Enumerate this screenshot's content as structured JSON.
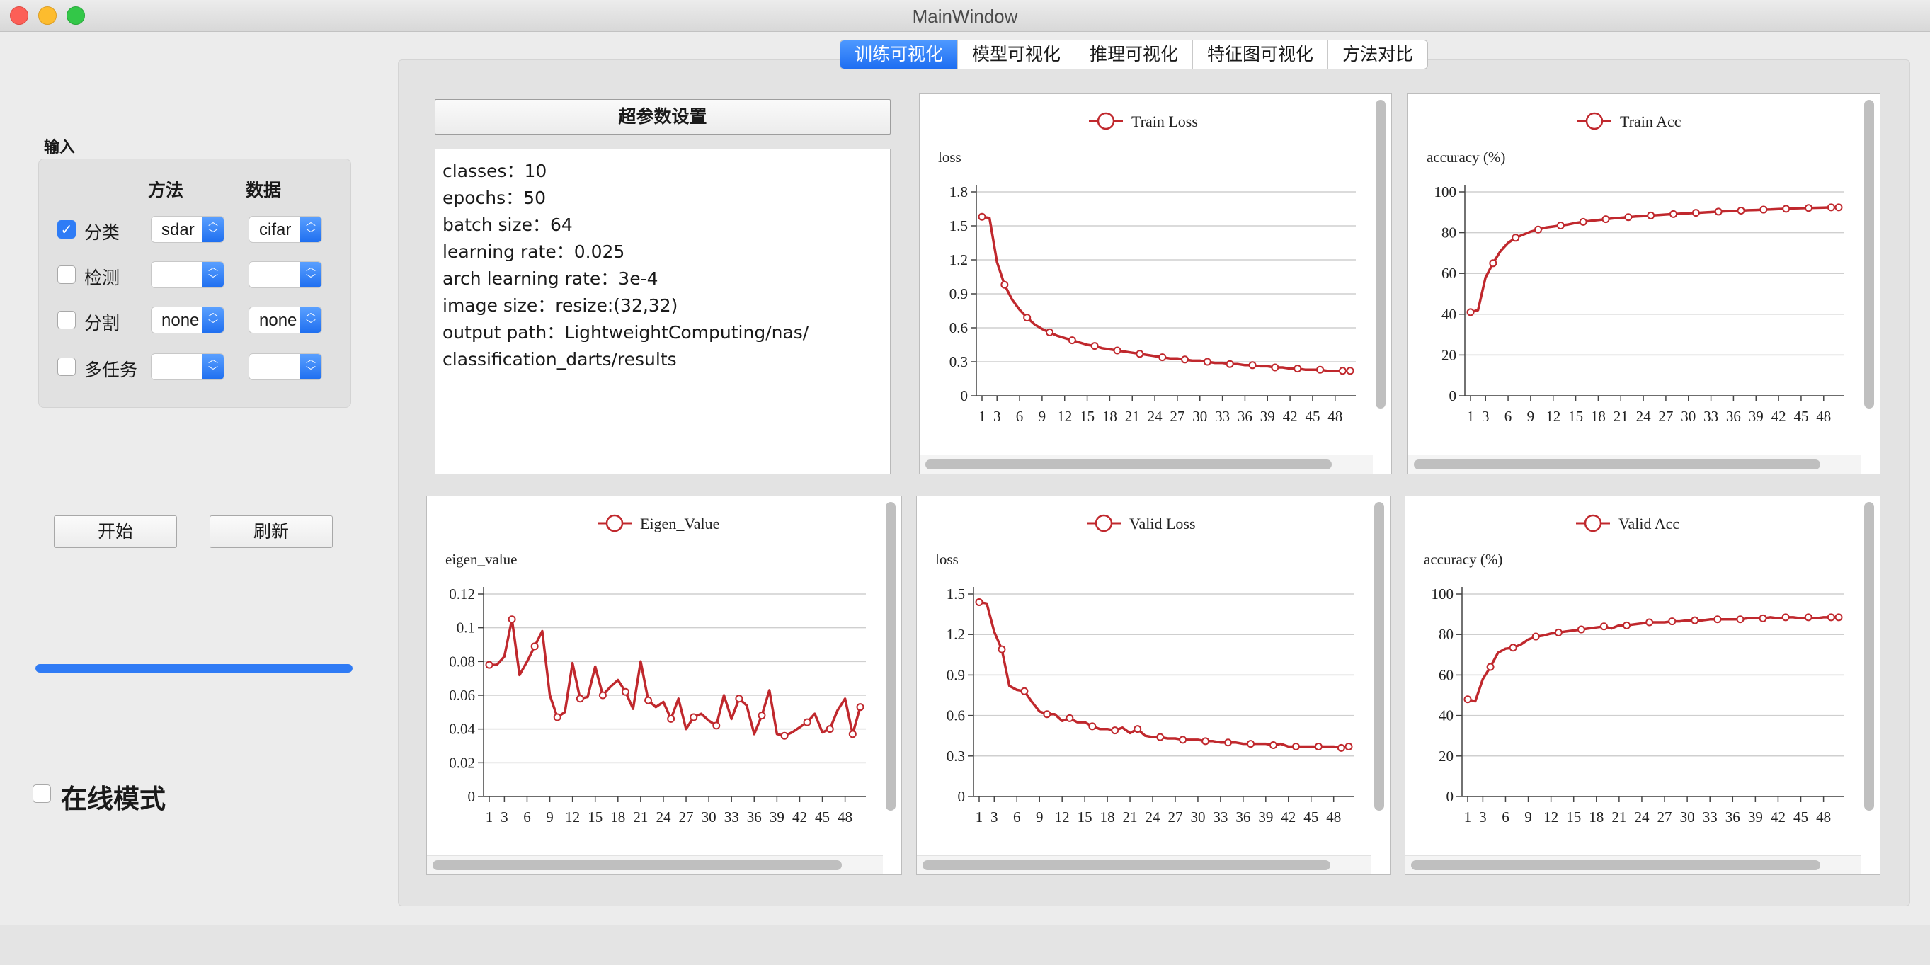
{
  "window": {
    "title": "MainWindow"
  },
  "left_panel": {
    "input_label": "输入",
    "col_method": "方法",
    "col_data": "数据",
    "rows": [
      {
        "label": "分类",
        "checked": true,
        "method": "sdar",
        "data": "cifar"
      },
      {
        "label": "检测",
        "checked": false,
        "method": "",
        "data": ""
      },
      {
        "label": "分割",
        "checked": false,
        "method": "none",
        "data": "none"
      },
      {
        "label": "多任务",
        "checked": false,
        "method": "",
        "data": ""
      }
    ],
    "start_button": "开始",
    "refresh_button": "刷新",
    "progress": 1.0,
    "online_mode": {
      "label": "在线模式",
      "checked": false
    }
  },
  "tabs": [
    "训练可视化",
    "模型可视化",
    "推理可视化",
    "特征图可视化",
    "方法对比"
  ],
  "active_tab": 0,
  "hyperparams": {
    "button_label": "超参数设置",
    "lines": [
      "classes：10",
      "epochs：50",
      "batch size：64",
      "learning rate：0.025",
      "arch learning rate：3e-4",
      "image size：resize:(32,32)",
      "output path：LightweightComputing/nas/",
      "classification_darts/results"
    ]
  },
  "colors": {
    "series": "#c0282d",
    "accent": "#2f7bf5"
  },
  "x_ticks": [
    "1",
    "3",
    "6",
    "9",
    "12",
    "15",
    "18",
    "21",
    "24",
    "27",
    "30",
    "33",
    "36",
    "39",
    "42",
    "45",
    "48"
  ],
  "chart_data": [
    {
      "id": "train-loss",
      "type": "line",
      "title": "",
      "ylabel": "loss",
      "series": [
        {
          "name": "Train Loss"
        }
      ],
      "y_ticks": [
        "0",
        "0.3",
        "0.6",
        "0.9",
        "1.2",
        "1.5",
        "1.8"
      ],
      "ylim": [
        0,
        1.8
      ],
      "x": [
        1,
        2,
        3,
        4,
        5,
        6,
        7,
        8,
        9,
        10,
        11,
        12,
        13,
        14,
        15,
        16,
        17,
        18,
        19,
        20,
        21,
        22,
        23,
        24,
        25,
        26,
        27,
        28,
        29,
        30,
        31,
        32,
        33,
        34,
        35,
        36,
        37,
        38,
        39,
        40,
        41,
        42,
        43,
        44,
        45,
        46,
        47,
        48,
        49,
        50
      ],
      "values": [
        1.58,
        1.57,
        1.18,
        0.98,
        0.85,
        0.76,
        0.69,
        0.63,
        0.59,
        0.56,
        0.53,
        0.51,
        0.49,
        0.47,
        0.45,
        0.44,
        0.42,
        0.41,
        0.4,
        0.39,
        0.38,
        0.37,
        0.36,
        0.35,
        0.34,
        0.33,
        0.33,
        0.32,
        0.31,
        0.31,
        0.3,
        0.29,
        0.29,
        0.28,
        0.28,
        0.27,
        0.27,
        0.26,
        0.26,
        0.25,
        0.25,
        0.24,
        0.24,
        0.23,
        0.23,
        0.23,
        0.22,
        0.22,
        0.22,
        0.22
      ],
      "marker_step": 3
    },
    {
      "id": "train-acc",
      "type": "line",
      "title": "",
      "ylabel": "accuracy (%)",
      "series": [
        {
          "name": "Train Acc"
        }
      ],
      "y_ticks": [
        "0",
        "20",
        "40",
        "60",
        "80",
        "100"
      ],
      "ylim": [
        0,
        100
      ],
      "x": [
        1,
        2,
        3,
        4,
        5,
        6,
        7,
        8,
        9,
        10,
        11,
        12,
        13,
        14,
        15,
        16,
        17,
        18,
        19,
        20,
        21,
        22,
        23,
        24,
        25,
        26,
        27,
        28,
        29,
        30,
        31,
        32,
        33,
        34,
        35,
        36,
        37,
        38,
        39,
        40,
        41,
        42,
        43,
        44,
        45,
        46,
        47,
        48,
        49,
        50
      ],
      "values": [
        41,
        42,
        58,
        65,
        71,
        75,
        77.5,
        79,
        80.5,
        81.5,
        82.5,
        83,
        83.5,
        84,
        84.8,
        85.3,
        85.8,
        86.2,
        86.6,
        87,
        87.3,
        87.6,
        87.9,
        88.1,
        88.4,
        88.6,
        88.9,
        89.1,
        89.3,
        89.5,
        89.7,
        89.9,
        90.1,
        90.3,
        90.5,
        90.6,
        90.8,
        91,
        91.1,
        91.3,
        91.4,
        91.6,
        91.7,
        91.9,
        92,
        92.1,
        92.2,
        92.3,
        92.4,
        92.4
      ],
      "marker_step": 3
    },
    {
      "id": "eigen-value",
      "type": "line",
      "title": "",
      "ylabel": "eigen_value",
      "series": [
        {
          "name": "Eigen_Value"
        }
      ],
      "y_ticks": [
        "0",
        "0.02",
        "0.04",
        "0.06",
        "0.08",
        "0.1",
        "0.12"
      ],
      "ylim": [
        0,
        0.12
      ],
      "x": [
        1,
        2,
        3,
        4,
        5,
        6,
        7,
        8,
        9,
        10,
        11,
        12,
        13,
        14,
        15,
        16,
        17,
        18,
        19,
        20,
        21,
        22,
        23,
        24,
        25,
        26,
        27,
        28,
        29,
        30,
        31,
        32,
        33,
        34,
        35,
        36,
        37,
        38,
        39,
        40,
        41,
        42,
        43,
        44,
        45,
        46,
        47,
        48,
        49,
        50
      ],
      "values": [
        0.078,
        0.078,
        0.083,
        0.105,
        0.072,
        0.08,
        0.089,
        0.098,
        0.06,
        0.047,
        0.05,
        0.079,
        0.058,
        0.059,
        0.077,
        0.06,
        0.065,
        0.069,
        0.062,
        0.052,
        0.08,
        0.057,
        0.053,
        0.056,
        0.046,
        0.058,
        0.04,
        0.047,
        0.049,
        0.045,
        0.042,
        0.06,
        0.046,
        0.058,
        0.054,
        0.037,
        0.048,
        0.063,
        0.037,
        0.036,
        0.038,
        0.041,
        0.044,
        0.049,
        0.038,
        0.04,
        0.051,
        0.058,
        0.037,
        0.053
      ],
      "marker_step": 3
    },
    {
      "id": "valid-loss",
      "type": "line",
      "title": "",
      "ylabel": "loss",
      "series": [
        {
          "name": "Valid Loss"
        }
      ],
      "y_ticks": [
        "0",
        "0.3",
        "0.6",
        "0.9",
        "1.2",
        "1.5"
      ],
      "ylim": [
        0,
        1.5
      ],
      "x": [
        1,
        2,
        3,
        4,
        5,
        6,
        7,
        8,
        9,
        10,
        11,
        12,
        13,
        14,
        15,
        16,
        17,
        18,
        19,
        20,
        21,
        22,
        23,
        24,
        25,
        26,
        27,
        28,
        29,
        30,
        31,
        32,
        33,
        34,
        35,
        36,
        37,
        38,
        39,
        40,
        41,
        42,
        43,
        44,
        45,
        46,
        47,
        48,
        49,
        50
      ],
      "values": [
        1.44,
        1.43,
        1.22,
        1.09,
        0.82,
        0.79,
        0.78,
        0.7,
        0.63,
        0.61,
        0.61,
        0.56,
        0.58,
        0.55,
        0.55,
        0.52,
        0.5,
        0.5,
        0.49,
        0.51,
        0.47,
        0.5,
        0.45,
        0.44,
        0.44,
        0.43,
        0.43,
        0.42,
        0.42,
        0.42,
        0.41,
        0.41,
        0.4,
        0.4,
        0.4,
        0.39,
        0.39,
        0.39,
        0.39,
        0.38,
        0.39,
        0.37,
        0.37,
        0.37,
        0.37,
        0.37,
        0.37,
        0.37,
        0.36,
        0.37
      ],
      "marker_step": 3
    },
    {
      "id": "valid-acc",
      "type": "line",
      "title": "",
      "ylabel": "accuracy (%)",
      "series": [
        {
          "name": "Valid Acc"
        }
      ],
      "y_ticks": [
        "0",
        "20",
        "40",
        "60",
        "80",
        "100"
      ],
      "ylim": [
        0,
        100
      ],
      "x": [
        1,
        2,
        3,
        4,
        5,
        6,
        7,
        8,
        9,
        10,
        11,
        12,
        13,
        14,
        15,
        16,
        17,
        18,
        19,
        20,
        21,
        22,
        23,
        24,
        25,
        26,
        27,
        28,
        29,
        30,
        31,
        32,
        33,
        34,
        35,
        36,
        37,
        38,
        39,
        40,
        41,
        42,
        43,
        44,
        45,
        46,
        47,
        48,
        49,
        50
      ],
      "values": [
        48,
        47,
        58,
        64,
        71,
        73,
        73.5,
        75,
        77.5,
        79,
        79.5,
        80.5,
        81,
        81.5,
        82,
        82.5,
        83,
        83.5,
        84,
        83,
        84.5,
        84.5,
        85,
        85.5,
        86,
        86,
        86,
        86.5,
        86.5,
        87,
        87,
        87,
        87.5,
        87.5,
        87.5,
        87.5,
        87.5,
        88,
        88,
        88,
        88.5,
        88,
        88.5,
        88.5,
        88,
        88.5,
        88,
        88.5,
        88.5,
        88.5
      ],
      "marker_step": 3
    }
  ]
}
